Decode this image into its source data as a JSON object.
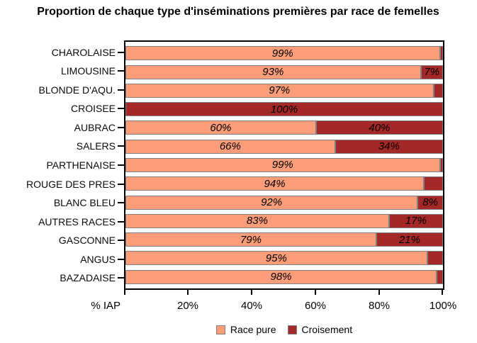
{
  "title": "Proportion de chaque type d'inséminations premières par race de femelles",
  "x_axis": {
    "label": "% IAP",
    "tick_labels": [
      "20%",
      "40%",
      "60%",
      "80%",
      "100%"
    ]
  },
  "legend": [
    {
      "label": "Race pure",
      "color": "#FC9D7A"
    },
    {
      "label": "Croisement",
      "color": "#A52828"
    }
  ],
  "colors": {
    "race_pure": "#FC9D7A",
    "croisement": "#A52828",
    "bar_border": "#7f7f7f",
    "axis": "#000000"
  },
  "chart_data": {
    "type": "bar",
    "orientation": "horizontal",
    "stacked": true,
    "title": "Proportion de chaque type d'inséminations premières par race de femelles",
    "xlabel": "% IAP",
    "xlim": [
      0,
      100
    ],
    "x_tick_labels": [
      "20%",
      "40%",
      "60%",
      "80%",
      "100%"
    ],
    "grid": false,
    "legend_position": "bottom",
    "categories": [
      "CHAROLAISE",
      "LIMOUSINE",
      "BLONDE D'AQU.",
      "CROISEE",
      "AUBRAC",
      "SALERS",
      "PARTHENAISE",
      "ROUGE DES PRES",
      "BLANC BLEU",
      "AUTRES RACES",
      "GASCONNE",
      "ANGUS",
      "BAZADAISE"
    ],
    "series": [
      {
        "name": "Race pure",
        "color": "#FC9D7A",
        "values": [
          99,
          93,
          97,
          0,
          60,
          66,
          99,
          94,
          92,
          83,
          79,
          95,
          98
        ],
        "labels": [
          "99%",
          "93%",
          "97%",
          "",
          "60%",
          "66%",
          "99%",
          "94%",
          "92%",
          "83%",
          "79%",
          "95%",
          "98%"
        ]
      },
      {
        "name": "Croisement",
        "color": "#A52828",
        "values": [
          1,
          7,
          3,
          100,
          40,
          34,
          1,
          6,
          8,
          17,
          21,
          5,
          2
        ],
        "labels": [
          "",
          "7%",
          "",
          "100%",
          "40%",
          "34%",
          "",
          "",
          "8%",
          "17%",
          "21%",
          "",
          ""
        ]
      }
    ]
  }
}
